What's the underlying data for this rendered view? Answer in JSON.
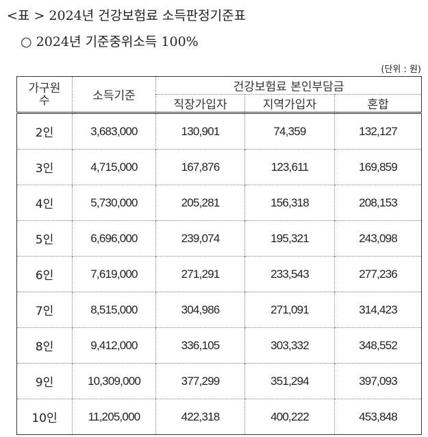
{
  "title": "<표 > 2024년 건강보험료 소득판정기준표",
  "subtitle": "○  2024년 기준중위소득 100%",
  "unit": "(단위 : 원)",
  "table": {
    "headers": {
      "household": "가구원\n수",
      "income": "소득기준",
      "premium_group": "건강보험료 본인부담금",
      "employee": "직장가입자",
      "regional": "지역가입자",
      "mixed": "혼합"
    },
    "rows": [
      [
        "2인",
        "3,683,000",
        "130,901",
        "74,359",
        "132,127"
      ],
      [
        "3인",
        "4,715,000",
        "167,876",
        "123,611",
        "169,859"
      ],
      [
        "4인",
        "5,730,000",
        "205,281",
        "156,318",
        "208,153"
      ],
      [
        "5인",
        "6,696,000",
        "239,074",
        "195,321",
        "243,098"
      ],
      [
        "6인",
        "7,619,000",
        "271,291",
        "233,543",
        "277,236"
      ],
      [
        "7인",
        "8,515,000",
        "304,986",
        "271,091",
        "314,423"
      ],
      [
        "8인",
        "9,412,000",
        "336,105",
        "303,332",
        "348,552"
      ],
      [
        "9인",
        "10,309,000",
        "377,299",
        "351,294",
        "397,093"
      ],
      [
        "10인",
        "11,205,000",
        "422,318",
        "400,222",
        "453,848"
      ]
    ]
  }
}
